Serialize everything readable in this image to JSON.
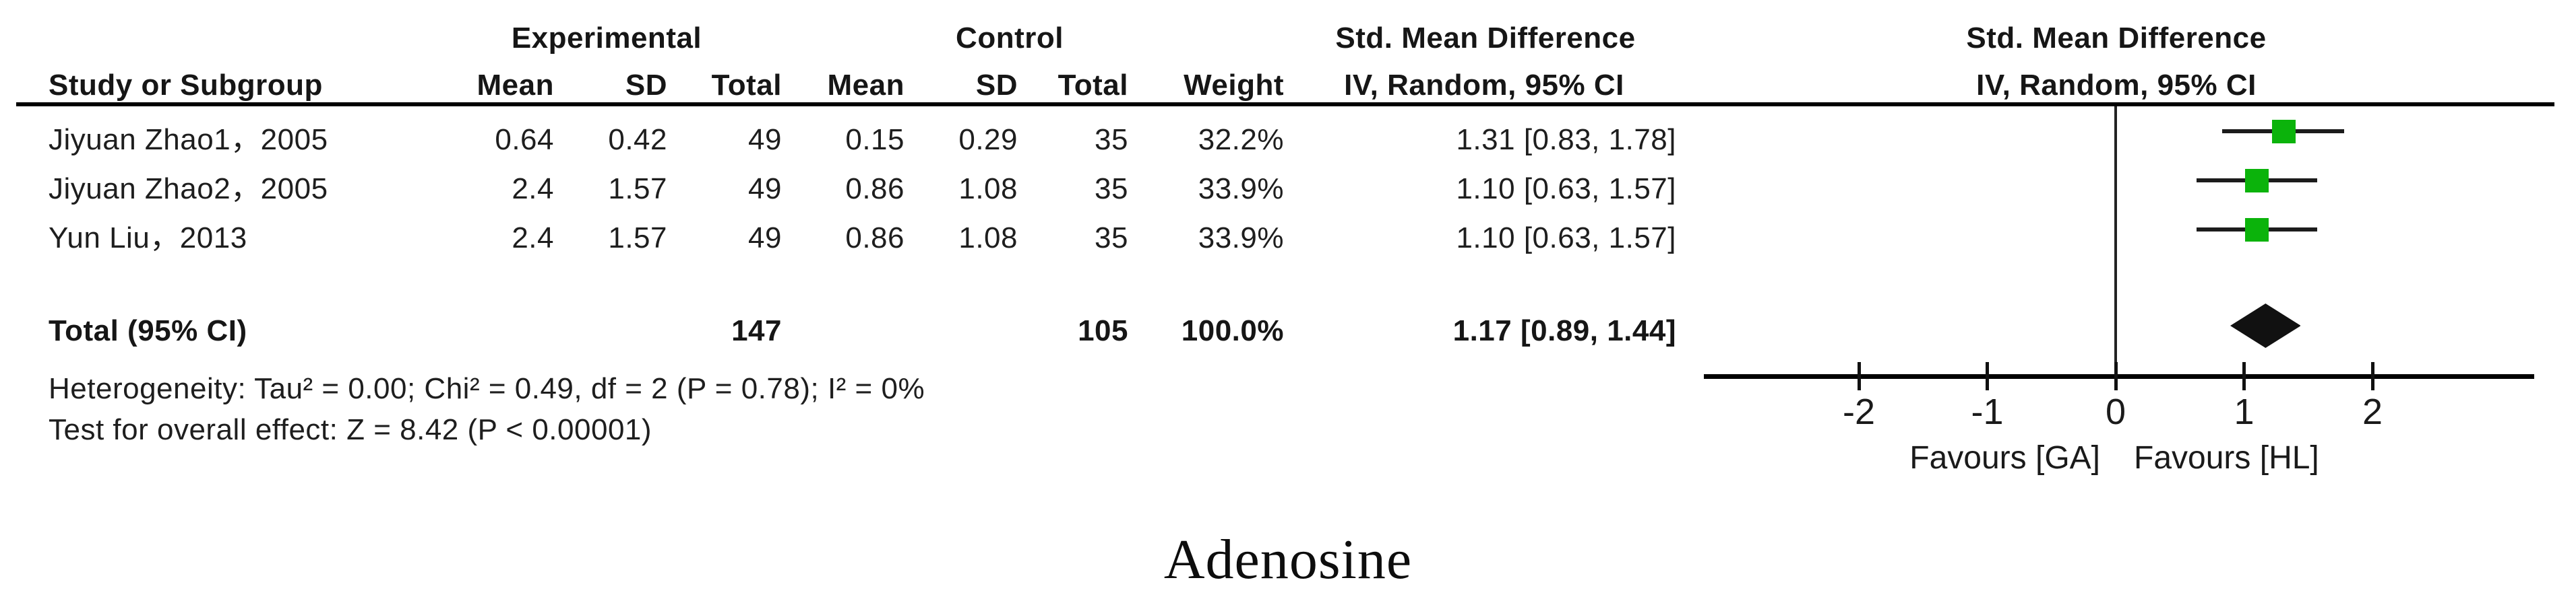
{
  "table": {
    "group_headers": {
      "experimental": "Experimental",
      "control": "Control",
      "smd_left": "Std. Mean Difference",
      "smd_right": "Std. Mean Difference"
    },
    "col_headers": {
      "study": "Study or Subgroup",
      "exp_mean": "Mean",
      "exp_sd": "SD",
      "exp_total": "Total",
      "ctrl_mean": "Mean",
      "ctrl_sd": "SD",
      "ctrl_total": "Total",
      "weight": "Weight",
      "iv_left": "IV, Random, 95% CI",
      "iv_right": "IV, Random, 95% CI"
    },
    "rows": [
      {
        "study": "Jiyuan Zhao1，2005",
        "exp_mean": "0.64",
        "exp_sd": "0.42",
        "exp_total": "49",
        "ctrl_mean": "0.15",
        "ctrl_sd": "0.29",
        "ctrl_total": "35",
        "weight": "32.2%",
        "smd_ci": "1.31 [0.83, 1.78]"
      },
      {
        "study": "Jiyuan Zhao2，2005",
        "exp_mean": "2.4",
        "exp_sd": "1.57",
        "exp_total": "49",
        "ctrl_mean": "0.86",
        "ctrl_sd": "1.08",
        "ctrl_total": "35",
        "weight": "33.9%",
        "smd_ci": "1.10 [0.63, 1.57]"
      },
      {
        "study": "Yun Liu，2013",
        "exp_mean": "2.4",
        "exp_sd": "1.57",
        "exp_total": "49",
        "ctrl_mean": "0.86",
        "ctrl_sd": "1.08",
        "ctrl_total": "35",
        "weight": "33.9%",
        "smd_ci": "1.10 [0.63, 1.57]"
      }
    ],
    "total_row": {
      "label": "Total (95% CI)",
      "exp_total": "147",
      "ctrl_total": "105",
      "weight": "100.0%",
      "smd_ci": "1.17 [0.89, 1.44]"
    },
    "heterogeneity": "Heterogeneity: Tau² = 0.00; Chi² = 0.49, df = 2 (P = 0.78); I² = 0%",
    "overall_effect": "Test for overall effect: Z = 8.42 (P < 0.00001)"
  },
  "chart_data": {
    "type": "forest",
    "title": "Adenosine",
    "effect_measure": "Std. Mean Difference",
    "model": "IV, Random, 95% CI",
    "studies": [
      {
        "name": "Jiyuan Zhao1，2005",
        "smd": 1.31,
        "ci": [
          0.83,
          1.78
        ],
        "weight_pct": 32.2
      },
      {
        "name": "Jiyuan Zhao2，2005",
        "smd": 1.1,
        "ci": [
          0.63,
          1.57
        ],
        "weight_pct": 33.9
      },
      {
        "name": "Yun Liu，2013",
        "smd": 1.1,
        "ci": [
          0.63,
          1.57
        ],
        "weight_pct": 33.9
      }
    ],
    "overall": {
      "label": "Total (95% CI)",
      "smd": 1.17,
      "ci": [
        0.89,
        1.44
      ],
      "weight_pct": 100.0
    },
    "x_ticks": [
      -2,
      -1,
      0,
      1,
      2
    ],
    "x_range": [
      -3.21,
      3.26
    ],
    "axis_labels": {
      "left": "Favours [GA]",
      "right": "Favours [HL]"
    },
    "marker_color": "#0bb30b",
    "diamond_color": "#111111",
    "grid": false,
    "legend": false
  },
  "caption": "Adenosine"
}
